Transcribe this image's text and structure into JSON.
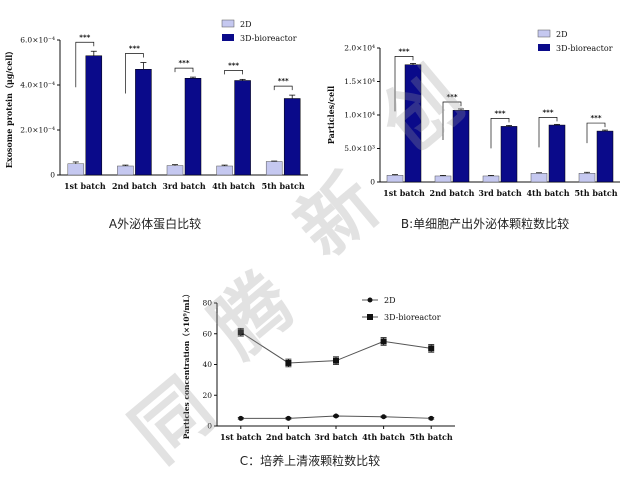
{
  "chart_data": [
    {
      "id": "A",
      "type": "bar",
      "title": "",
      "xlabel": "",
      "ylabel": "Exosome protein（μg/cell）",
      "ylim": [
        0,
        0.0006
      ],
      "yticks": [
        0,
        0.0002,
        0.0004,
        0.0006
      ],
      "ytick_labels": [
        "0",
        "2.0×10⁻⁴",
        "4.0×10⁻⁴",
        "6.0×10⁻⁴"
      ],
      "categories": [
        "1st batch",
        "2nd batch",
        "3rd batch",
        "4th batch",
        "5th batch"
      ],
      "series": [
        {
          "name": "2D",
          "values": [
            5e-05,
            4e-05,
            4.2e-05,
            4e-05,
            6e-05
          ],
          "errors": [
            8e-06,
            4e-06,
            4e-06,
            4e-06,
            2e-06
          ]
        },
        {
          "name": "3D-bioreactor",
          "values": [
            0.00053,
            0.00047,
            0.00043,
            0.00042,
            0.00034
          ],
          "errors": [
            2e-05,
            3e-05,
            5e-06,
            5e-06,
            1.5e-05
          ]
        }
      ],
      "significance": [
        "***",
        "***",
        "***",
        "***",
        "***"
      ],
      "legend_position": "top-right",
      "caption": "A外泌体蛋白比较"
    },
    {
      "id": "B",
      "type": "bar",
      "title": "",
      "xlabel": "",
      "ylabel": "Particles/cell",
      "ylim": [
        0,
        20000
      ],
      "yticks": [
        0,
        5000,
        10000,
        15000,
        20000
      ],
      "ytick_labels": [
        "0",
        "5.0×10³",
        "1.0×10⁴",
        "1.5×10⁴",
        "2.0×10⁴"
      ],
      "categories": [
        "1st batch",
        "2nd batch",
        "3rd batch",
        "4th batch",
        "5th batch"
      ],
      "series": [
        {
          "name": "2D",
          "values": [
            1000,
            900,
            900,
            1300,
            1300
          ],
          "errors": [
            100,
            80,
            80,
            80,
            150
          ]
        },
        {
          "name": "3D-bioreactor",
          "values": [
            17500,
            10700,
            8300,
            8500,
            7600
          ],
          "errors": [
            200,
            200,
            150,
            100,
            150
          ]
        }
      ],
      "significance": [
        "***",
        "***",
        "***",
        "***",
        "***"
      ],
      "legend_position": "top-right",
      "caption": "B:单细胞产出外泌体颗粒数比较"
    },
    {
      "id": "C",
      "type": "line",
      "title": "",
      "xlabel": "",
      "ylabel": "Particles concentration（×10⁹/mL）",
      "ylim": [
        0,
        80
      ],
      "yticks": [
        0,
        20,
        40,
        60,
        80
      ],
      "ytick_labels": [
        "0",
        "20",
        "40",
        "60",
        "80"
      ],
      "categories": [
        "1st batch",
        "2nd batch",
        "3rd batch",
        "4th batch",
        "5th batch"
      ],
      "series": [
        {
          "name": "2D",
          "values": [
            5,
            5,
            6.5,
            6,
            5
          ],
          "errors": [
            0.5,
            0.5,
            0.5,
            0.5,
            0.5
          ],
          "marker": "circle"
        },
        {
          "name": "3D-bioreactor",
          "values": [
            61,
            41,
            42.5,
            55,
            50.5
          ],
          "errors": [
            2.5,
            2.5,
            2.5,
            2.5,
            2.5
          ],
          "marker": "square"
        }
      ],
      "legend_position": "top-right",
      "caption": "C：培养上清液颗粒数比较"
    }
  ],
  "colors": {
    "series_2d": "#c5c8f0",
    "series_3d": "#0a0a8a",
    "axis": "#111111",
    "watermark": "#b4b4b4"
  },
  "watermark": {
    "chars": [
      "同",
      "腾",
      "新",
      "创"
    ]
  }
}
